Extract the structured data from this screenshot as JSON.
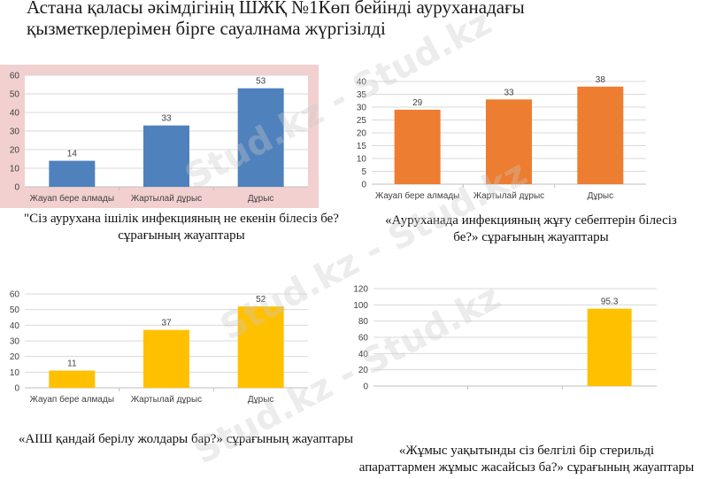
{
  "title": {
    "line1": "Астана қаласы әкімдігінің ШЖҚ №1Көп бейінді ауруханадағы",
    "line2": "қызметкерлерімен бірге сауалнама жүргізілді"
  },
  "watermark": "Stud.kz - Stud.kz",
  "colors": {
    "blue": "#4F81BD",
    "orange": "#ED7D31",
    "yellow": "#FFC000",
    "highlight": "#F2D0D0",
    "grid": "#D9D9D9",
    "axis": "#BFBFBF"
  },
  "captions": [
    {
      "line1": "\"Сіз аурухана ішілік инфекцияның не екенін білесіз бе?",
      "line2": "сұрағының жауаптары"
    },
    {
      "line1": "«Ауруханада инфекцияның жұғу себептерін білесіз",
      "line2": "бе?» сұрағының жауаптары"
    },
    {
      "line1": "«АІШ қандай берілу жолдары бар?» сұрағының жауаптары",
      "line2": ""
    },
    {
      "line1": "«Жұмыс уақытынды сіз белгілі бір стерильді",
      "line2": "апараттармен жұмыс жасайсыз ба?» сұрағының жауаптары"
    }
  ],
  "chart_data": [
    {
      "type": "bar",
      "categories": [
        "Жауап бере алмады",
        "Жартылай дұрыс",
        "Дұрыс"
      ],
      "values": [
        14,
        33,
        53
      ],
      "ylim": [
        0,
        60
      ],
      "yticks": [
        0,
        10,
        20,
        30,
        40,
        50,
        60
      ],
      "grid": true,
      "color": "#4F81BD",
      "highlighted": true
    },
    {
      "type": "bar",
      "categories": [
        "Жауап бере алмады",
        "Жартылай дұрыс",
        "Дұрыс"
      ],
      "values": [
        29,
        33,
        38
      ],
      "ylim": [
        0,
        40
      ],
      "yticks": [
        0,
        5,
        10,
        15,
        20,
        25,
        30,
        35,
        40
      ],
      "grid": true,
      "color": "#ED7D31"
    },
    {
      "type": "bar",
      "categories": [
        "Жауап бере алмады",
        "Жартылай дұрыс",
        "Дұрыс"
      ],
      "values": [
        11,
        37,
        52
      ],
      "ylim": [
        0,
        60
      ],
      "yticks": [
        0,
        10,
        20,
        30,
        40,
        50,
        60
      ],
      "grid": true,
      "color": "#FFC000"
    },
    {
      "type": "bar",
      "categories": [
        "",
        "",
        ""
      ],
      "values": [
        null,
        null,
        95.3
      ],
      "ylim": [
        0,
        120
      ],
      "yticks": [
        0,
        20,
        40,
        60,
        80,
        100,
        120
      ],
      "grid": true,
      "color": "#FFC000"
    }
  ]
}
